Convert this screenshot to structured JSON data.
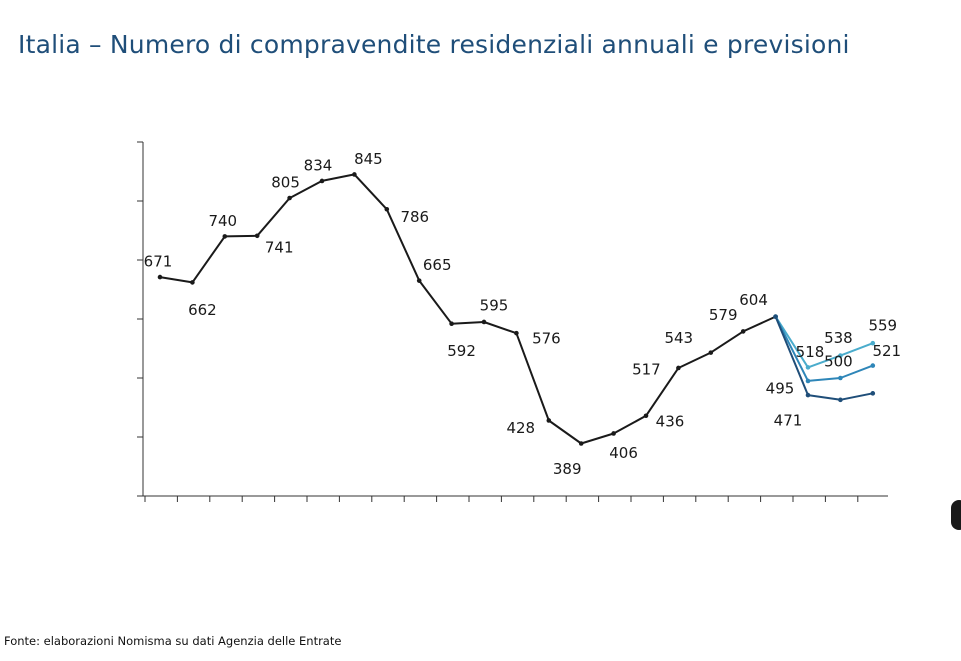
{
  "title": "Italia – Numero di compravendite residenziali annuali e previsioni",
  "source": "Fonte: elaborazioni Nomisma su dati Agenzia delle Entrate",
  "chart_data": {
    "type": "line",
    "title": "Italia – Numero di compravendite residenziali annuali e previsioni",
    "xlabel": "",
    "ylabel": "",
    "ylim": [
      300,
      900
    ],
    "grid": false,
    "x": [
      1,
      2,
      3,
      4,
      5,
      6,
      7,
      8,
      9,
      10,
      11,
      12,
      13,
      14,
      15,
      16,
      17,
      18,
      19,
      20,
      21,
      22
    ],
    "series": [
      {
        "color": "#1a1a1a",
        "x": [
          1,
          2,
          3,
          4,
          5,
          6,
          7,
          8,
          9,
          10,
          11,
          12,
          13,
          14,
          15,
          16,
          17,
          18,
          19,
          20
        ],
        "values": [
          671,
          662,
          740,
          741,
          805,
          834,
          845,
          786,
          665,
          592,
          595,
          576,
          428,
          389,
          406,
          436,
          517,
          543,
          579,
          604
        ],
        "labels": [
          "671",
          "662",
          "740",
          "741",
          "805",
          "834",
          "845",
          "786",
          "665",
          "592",
          "595",
          "576",
          "428",
          "389",
          "406",
          "436",
          "517",
          "543",
          "579",
          "604"
        ]
      },
      {
        "color": "#4aaccc",
        "x": [
          20,
          21,
          22,
          23
        ],
        "values": [
          604,
          518,
          538,
          559
        ],
        "labels": [
          "",
          "518",
          "538",
          "559"
        ]
      },
      {
        "color": "#2e86b8",
        "x": [
          20,
          21,
          22,
          23
        ],
        "values": [
          604,
          495,
          500,
          521
        ],
        "labels": [
          "",
          "495",
          "500",
          "521"
        ]
      },
      {
        "color": "#1f4e79",
        "x": [
          20,
          21,
          22,
          23
        ],
        "values": [
          604,
          471,
          463,
          474
        ],
        "labels": [
          "",
          "471",
          "",
          ""
        ]
      }
    ]
  }
}
